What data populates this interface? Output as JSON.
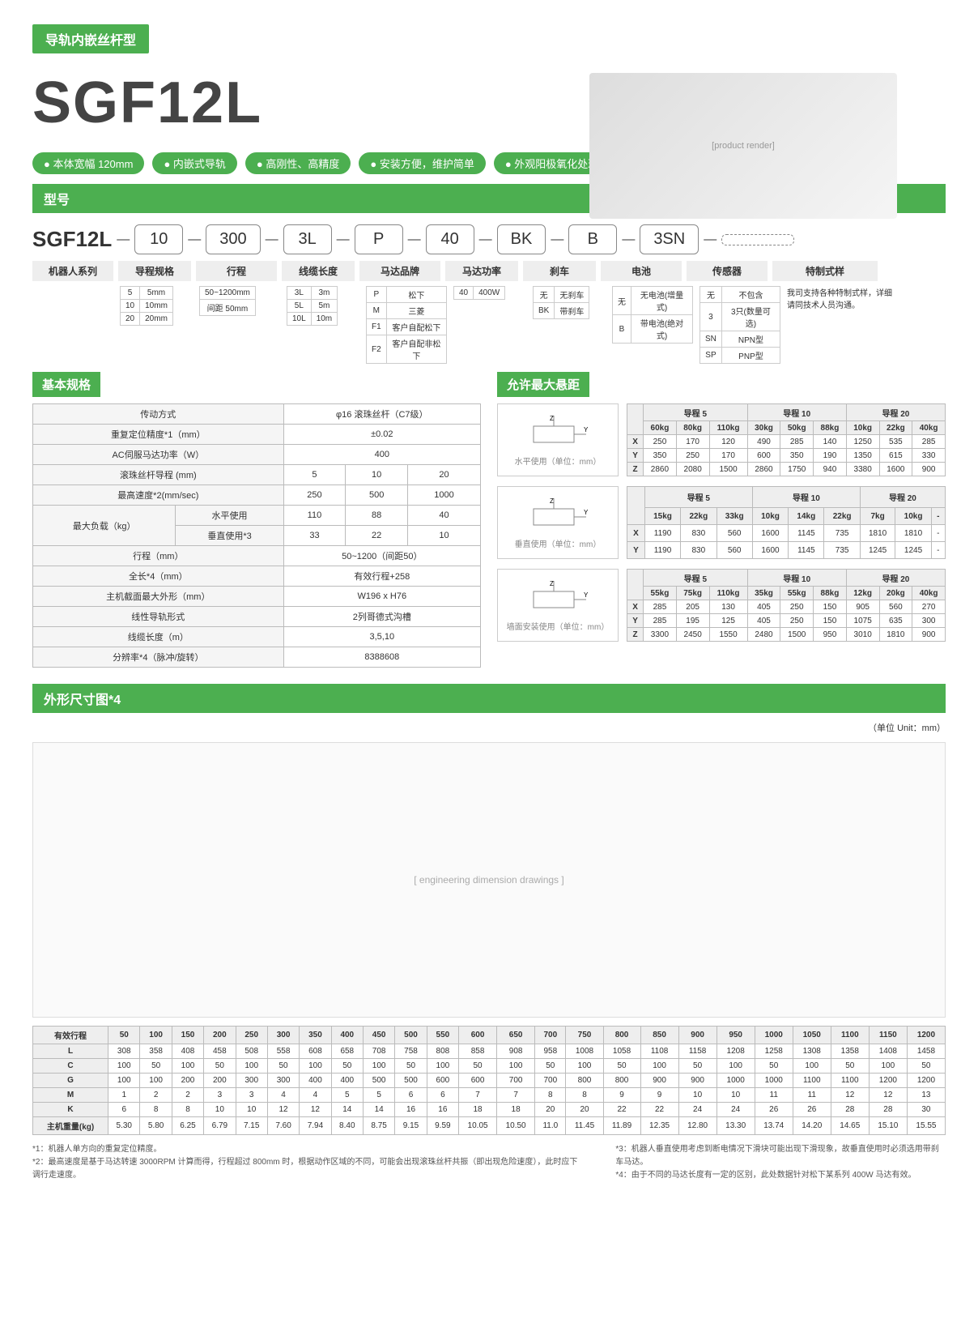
{
  "header_category": "导轨内嵌丝杆型",
  "model": "SGF12L",
  "features": [
    "本体宽幅 120mm",
    "内嵌式导轨",
    "高刚性、高精度",
    "安装方便，维护简单",
    "外观阳极氧化处理"
  ],
  "section_model": "型号",
  "model_base": "SGF12L",
  "model_parts": [
    "10",
    "300",
    "3L",
    "P",
    "40",
    "BK",
    "B",
    "3SN",
    ""
  ],
  "model_labels": [
    "机器人系列",
    "导程规格",
    "行程",
    "线缆长度",
    "马达品牌",
    "马达功率",
    "刹车",
    "电池",
    "传感器",
    "特制式样"
  ],
  "opt_lead": [
    [
      "5",
      "5mm"
    ],
    [
      "10",
      "10mm"
    ],
    [
      "20",
      "20mm"
    ]
  ],
  "opt_stroke": [
    [
      "50~1200mm"
    ],
    [
      "间距 50mm"
    ]
  ],
  "opt_cable": [
    [
      "3L",
      "3m"
    ],
    [
      "5L",
      "5m"
    ],
    [
      "10L",
      "10m"
    ]
  ],
  "opt_brand": [
    [
      "P",
      "松下"
    ],
    [
      "M",
      "三菱"
    ],
    [
      "F1",
      "客户自配松下"
    ],
    [
      "F2",
      "客户自配非松下"
    ]
  ],
  "opt_power": [
    [
      "40",
      "400W"
    ]
  ],
  "opt_brake": [
    [
      "无",
      "无刹车"
    ],
    [
      "BK",
      "带刹车"
    ]
  ],
  "opt_battery": [
    [
      "无",
      "无电池(增量式)"
    ],
    [
      "B",
      "带电池(绝对式)"
    ]
  ],
  "opt_sensor": [
    [
      "无",
      "不包含"
    ],
    [
      "3",
      "3只(数量可选)"
    ],
    [
      "SN",
      "NPN型"
    ],
    [
      "SP",
      "PNP型"
    ]
  ],
  "opt_custom": "我司支持各种特制式样，详细请同技术人员沟通。",
  "section_basic": "基本规格",
  "section_cantilever": "允许最大悬距",
  "basic_rows": [
    [
      "传动方式",
      "φ16 滚珠丝杆（C7级）"
    ],
    [
      "重复定位精度*1（mm）",
      "±0.02"
    ],
    [
      "AC伺服马达功率（W）",
      "400"
    ]
  ],
  "basic_lead_header": [
    "滚珠丝杆导程 (mm)",
    "5",
    "10",
    "20"
  ],
  "basic_speed": [
    "最高速度*2(mm/sec)",
    "250",
    "500",
    "1000"
  ],
  "basic_load_h": [
    "水平使用",
    "110",
    "88",
    "40"
  ],
  "basic_load_v": [
    "垂直使用*3",
    "33",
    "22",
    "10"
  ],
  "basic_load_label": "最大负载（kg）",
  "basic_rows2": [
    [
      "行程（mm）",
      "50~1200（间距50）"
    ],
    [
      "全长*4（mm）",
      "有效行程+258"
    ],
    [
      "主机截面最大外形（mm）",
      "W196 x H76"
    ],
    [
      "线性导轨形式",
      "2列哥德式沟槽"
    ],
    [
      "线缆长度（m）",
      "3,5,10"
    ],
    [
      "分辨率*4（脉冲/旋转）",
      "8388608"
    ]
  ],
  "cant_diag1": "水平使用（单位：mm）",
  "cant_diag2": "垂直使用（单位：mm）",
  "cant_diag3": "墙面安装使用（单位：mm）",
  "cant_lead_headers": [
    "导程 5",
    "导程 10",
    "导程 20"
  ],
  "cant_h_weights": [
    "60kg",
    "80kg",
    "110kg",
    "30kg",
    "50kg",
    "88kg",
    "10kg",
    "22kg",
    "40kg"
  ],
  "cant_h": [
    [
      "X",
      "250",
      "170",
      "120",
      "490",
      "285",
      "140",
      "1250",
      "535",
      "285"
    ],
    [
      "Y",
      "350",
      "250",
      "170",
      "600",
      "350",
      "190",
      "1350",
      "615",
      "330"
    ],
    [
      "Z",
      "2860",
      "2080",
      "1500",
      "2860",
      "1750",
      "940",
      "3380",
      "1600",
      "900"
    ]
  ],
  "cant_v_weights": [
    "15kg",
    "22kg",
    "33kg",
    "10kg",
    "14kg",
    "22kg",
    "7kg",
    "10kg",
    "-"
  ],
  "cant_v": [
    [
      "X",
      "1190",
      "830",
      "560",
      "1600",
      "1145",
      "735",
      "1810",
      "1810",
      "-"
    ],
    [
      "Y",
      "1190",
      "830",
      "560",
      "1600",
      "1145",
      "735",
      "1245",
      "1245",
      "-"
    ]
  ],
  "cant_w_weights": [
    "55kg",
    "75kg",
    "110kg",
    "35kg",
    "55kg",
    "88kg",
    "12kg",
    "20kg",
    "40kg"
  ],
  "cant_w": [
    [
      "X",
      "285",
      "205",
      "130",
      "405",
      "250",
      "150",
      "905",
      "560",
      "270"
    ],
    [
      "Y",
      "285",
      "195",
      "125",
      "405",
      "250",
      "150",
      "1075",
      "635",
      "300"
    ],
    [
      "Z",
      "3300",
      "2450",
      "1550",
      "2480",
      "1500",
      "950",
      "3010",
      "1810",
      "900"
    ]
  ],
  "section_dim": "外形尺寸图*4",
  "unit_label": "（单位 Unit：mm）",
  "dim_headers": [
    "有效行程",
    "50",
    "100",
    "150",
    "200",
    "250",
    "300",
    "350",
    "400",
    "450",
    "500",
    "550",
    "600",
    "650",
    "700",
    "750",
    "800",
    "850",
    "900",
    "950",
    "1000",
    "1050",
    "1100",
    "1150",
    "1200"
  ],
  "dim_rows": [
    [
      "L",
      "308",
      "358",
      "408",
      "458",
      "508",
      "558",
      "608",
      "658",
      "708",
      "758",
      "808",
      "858",
      "908",
      "958",
      "1008",
      "1058",
      "1108",
      "1158",
      "1208",
      "1258",
      "1308",
      "1358",
      "1408",
      "1458"
    ],
    [
      "C",
      "100",
      "50",
      "100",
      "50",
      "100",
      "50",
      "100",
      "50",
      "100",
      "50",
      "100",
      "50",
      "100",
      "50",
      "100",
      "50",
      "100",
      "50",
      "100",
      "50",
      "100",
      "50",
      "100",
      "50"
    ],
    [
      "G",
      "100",
      "100",
      "200",
      "200",
      "300",
      "300",
      "400",
      "400",
      "500",
      "500",
      "600",
      "600",
      "700",
      "700",
      "800",
      "800",
      "900",
      "900",
      "1000",
      "1000",
      "1100",
      "1100",
      "1200",
      "1200"
    ],
    [
      "M",
      "1",
      "2",
      "2",
      "3",
      "3",
      "4",
      "4",
      "5",
      "5",
      "6",
      "6",
      "7",
      "7",
      "8",
      "8",
      "9",
      "9",
      "10",
      "10",
      "11",
      "11",
      "12",
      "12",
      "13"
    ],
    [
      "K",
      "6",
      "8",
      "8",
      "10",
      "10",
      "12",
      "12",
      "14",
      "14",
      "16",
      "16",
      "18",
      "18",
      "20",
      "20",
      "22",
      "22",
      "24",
      "24",
      "26",
      "26",
      "28",
      "28",
      "30"
    ],
    [
      "主机重量(kg)",
      "5.30",
      "5.80",
      "6.25",
      "6.79",
      "7.15",
      "7.60",
      "7.94",
      "8.40",
      "8.75",
      "9.15",
      "9.59",
      "10.05",
      "10.50",
      "11.0",
      "11.45",
      "11.89",
      "12.35",
      "12.80",
      "13.30",
      "13.74",
      "14.20",
      "14.65",
      "15.10",
      "15.55"
    ]
  ],
  "footnotes_left": [
    "*1：机器人单方向的重复定位精度。",
    "*2：最高速度是基于马达转速 3000RPM 计算而得，行程超过 800mm 时，根据动作区域的不同，可能会出现滚珠丝杆共振（即出现危险速度），此时应下调行走速度。"
  ],
  "footnotes_right": [
    "*3：机器人垂直使用考虑到断电情况下滑块可能出现下滑现象，故垂直使用时必须选用带刹车马达。",
    "*4：由于不同的马达长度有一定的区别，此处数据针对松下某系列 400W 马达有效。"
  ]
}
